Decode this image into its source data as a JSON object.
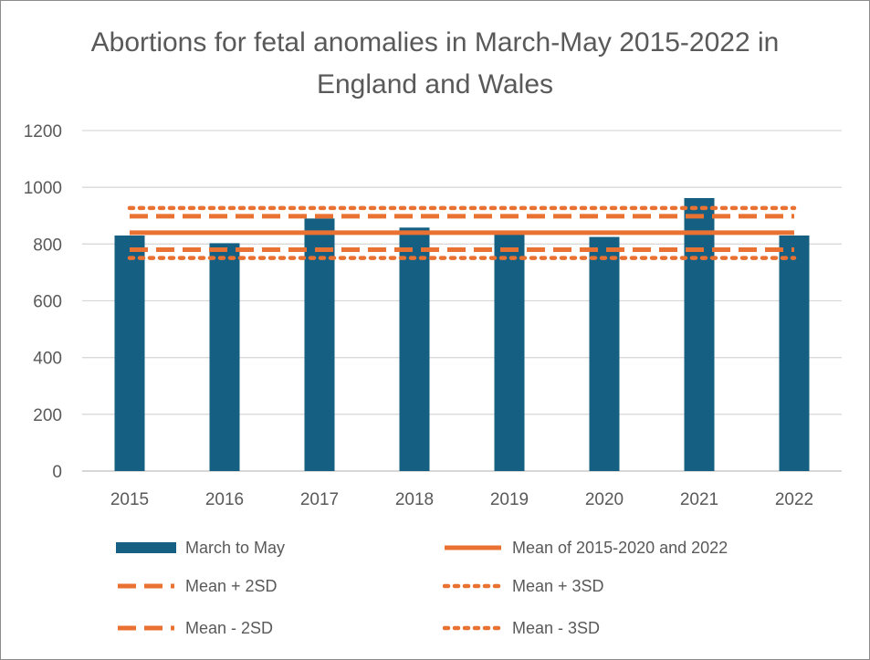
{
  "chart_data": {
    "type": "bar",
    "title": "Abortions for fetal anomalies in March-May 2015-2022 in England and Wales",
    "categories": [
      "2015",
      "2016",
      "2017",
      "2018",
      "2019",
      "2020",
      "2021",
      "2022"
    ],
    "series": [
      {
        "name": "March to May",
        "values": [
          830,
          803,
          890,
          858,
          838,
          825,
          962,
          830
        ],
        "color": "#156082"
      }
    ],
    "reference_lines": [
      {
        "name": "Mean of 2015-2020 and 2022",
        "value": 840,
        "style": "solid",
        "color": "#E97132"
      },
      {
        "name": "Mean + 2SD",
        "value": 898,
        "style": "dashed",
        "color": "#E97132"
      },
      {
        "name": "Mean + 3SD",
        "value": 927,
        "style": "dotted",
        "color": "#E97132"
      },
      {
        "name": "Mean - 2SD",
        "value": 780,
        "style": "dashed",
        "color": "#E97132"
      },
      {
        "name": "Mean - 3SD",
        "value": 751,
        "style": "dotted",
        "color": "#E97132"
      }
    ],
    "y_ticks": [
      "0",
      "200",
      "400",
      "600",
      "800",
      "1000",
      "1200"
    ],
    "ylim": [
      0,
      1200
    ],
    "grid": true,
    "legend_position": "bottom"
  }
}
